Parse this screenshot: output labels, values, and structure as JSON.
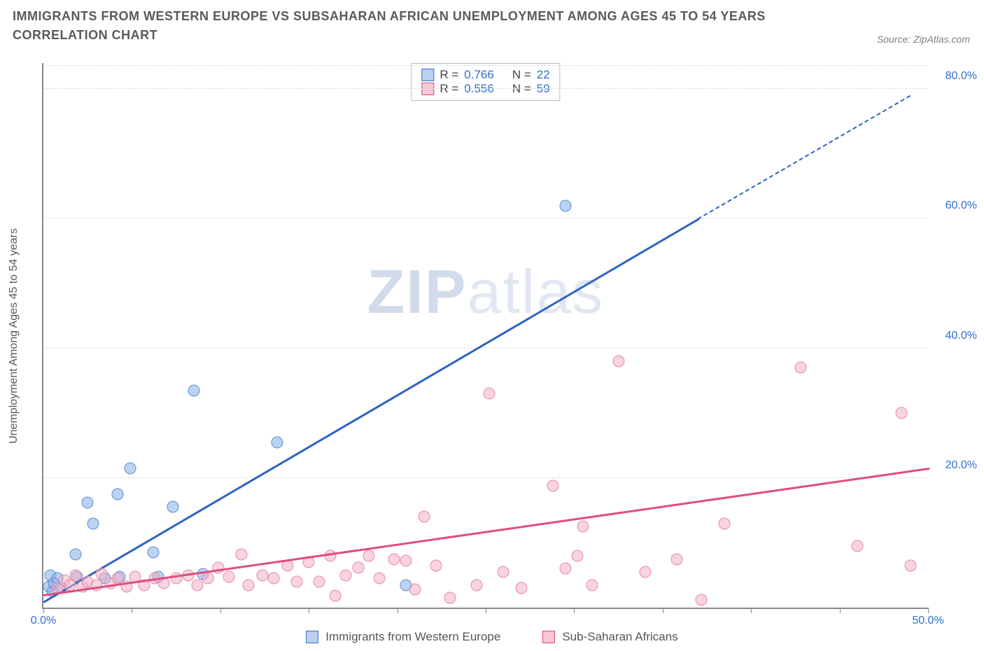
{
  "title": "IMMIGRANTS FROM WESTERN EUROPE VS SUBSAHARAN AFRICAN UNEMPLOYMENT AMONG AGES 45 TO 54 YEARS CORRELATION CHART",
  "source_label": "Source: ZipAtlas.com",
  "watermark": {
    "zip": "ZIP",
    "atlas": "atlas"
  },
  "ylabel": "Unemployment Among Ages 45 to 54 years",
  "chart": {
    "type": "scatter",
    "background_color": "#ffffff",
    "grid_color": "#dcdcdc",
    "axis_color": "#888888",
    "xlim": [
      0,
      50
    ],
    "ylim": [
      0,
      84
    ],
    "xticks": [
      0,
      5,
      10,
      15,
      20,
      25,
      30,
      35,
      40,
      45,
      50
    ],
    "xtick_labels": {
      "0": "0.0%",
      "50": "50.0%"
    },
    "yticks": [
      20,
      40,
      60,
      80
    ],
    "ytick_labels": {
      "20": "20.0%",
      "40": "40.0%",
      "60": "60.0%",
      "80": "80.0%"
    },
    "label_color": "#2f6fd0",
    "label_fontsize": 16
  },
  "stats": {
    "rows": [
      {
        "r_label": "R =",
        "r": "0.766",
        "n_label": "N =",
        "n": "22",
        "swatch_fill": "#b9d0f0",
        "swatch_border": "#3a6fc9"
      },
      {
        "r_label": "R =",
        "r": "0.556",
        "n_label": "N =",
        "n": "59",
        "swatch_fill": "#f7c7d4",
        "swatch_border": "#d94c78"
      }
    ]
  },
  "legend": {
    "items": [
      {
        "label": "Immigrants from Western Europe",
        "fill": "#b9d0f0",
        "border": "#3a6fc9"
      },
      {
        "label": "Sub-Saharan Africans",
        "fill": "#f7c7d4",
        "border": "#d94c78"
      }
    ]
  },
  "series": [
    {
      "name": "Immigrants from Western Europe",
      "color_fill": "rgba(133,173,231,0.55)",
      "color_border": "#5a8fd6",
      "marker_radius": 8.5,
      "trend": {
        "x1": 0,
        "y1": 1,
        "x2": 37,
        "y2": 60,
        "x3": 49,
        "y3": 79,
        "color": "#2e63c2",
        "width": 2.5
      },
      "points": [
        [
          0.3,
          3.2
        ],
        [
          0.4,
          5.0
        ],
        [
          0.5,
          2.5
        ],
        [
          0.6,
          3.8
        ],
        [
          0.8,
          4.5
        ],
        [
          1.0,
          3.0
        ],
        [
          1.8,
          8.2
        ],
        [
          1.9,
          4.8
        ],
        [
          2.5,
          16.2
        ],
        [
          2.8,
          13.0
        ],
        [
          3.5,
          4.5
        ],
        [
          4.2,
          17.5
        ],
        [
          4.3,
          4.8
        ],
        [
          4.9,
          21.5
        ],
        [
          6.2,
          8.5
        ],
        [
          6.5,
          4.8
        ],
        [
          7.3,
          15.5
        ],
        [
          8.5,
          33.5
        ],
        [
          9.0,
          5.2
        ],
        [
          13.2,
          25.5
        ],
        [
          20.5,
          3.5
        ],
        [
          29.5,
          62.0
        ]
      ]
    },
    {
      "name": "Sub-Saharan Africans",
      "color_fill": "rgba(244,175,196,0.55)",
      "color_border": "#e38aa8",
      "marker_radius": 8.5,
      "trend": {
        "x1": 0,
        "y1": 2,
        "x2": 50,
        "y2": 21.5,
        "color": "#e04c80",
        "width": 2.5
      },
      "points": [
        [
          0.8,
          3.0
        ],
        [
          1.2,
          4.2
        ],
        [
          1.5,
          3.5
        ],
        [
          1.8,
          5.0
        ],
        [
          2.2,
          3.2
        ],
        [
          2.5,
          4.0
        ],
        [
          3.0,
          3.5
        ],
        [
          3.3,
          5.2
        ],
        [
          3.8,
          3.8
        ],
        [
          4.2,
          4.5
        ],
        [
          4.7,
          3.2
        ],
        [
          5.2,
          4.8
        ],
        [
          5.7,
          3.5
        ],
        [
          6.3,
          4.5
        ],
        [
          6.8,
          3.8
        ],
        [
          7.5,
          4.5
        ],
        [
          8.2,
          5.0
        ],
        [
          8.7,
          3.5
        ],
        [
          9.3,
          4.5
        ],
        [
          9.9,
          6.2
        ],
        [
          10.5,
          4.8
        ],
        [
          11.2,
          8.2
        ],
        [
          11.6,
          3.5
        ],
        [
          12.4,
          5.0
        ],
        [
          13.0,
          4.5
        ],
        [
          13.8,
          6.5
        ],
        [
          14.3,
          4.0
        ],
        [
          15.0,
          7.0
        ],
        [
          15.6,
          4.0
        ],
        [
          16.2,
          8.0
        ],
        [
          16.5,
          1.8
        ],
        [
          17.1,
          5.0
        ],
        [
          17.8,
          6.2
        ],
        [
          18.4,
          8.0
        ],
        [
          19.0,
          4.5
        ],
        [
          19.8,
          7.5
        ],
        [
          20.5,
          7.2
        ],
        [
          21.0,
          2.8
        ],
        [
          21.5,
          14.0
        ],
        [
          22.2,
          6.5
        ],
        [
          23.0,
          1.5
        ],
        [
          24.5,
          3.5
        ],
        [
          25.2,
          33.0
        ],
        [
          26.0,
          5.5
        ],
        [
          27.0,
          3.0
        ],
        [
          28.8,
          18.8
        ],
        [
          29.5,
          6.0
        ],
        [
          30.2,
          8.0
        ],
        [
          30.5,
          12.5
        ],
        [
          31.0,
          3.5
        ],
        [
          32.5,
          38.0
        ],
        [
          34.0,
          5.5
        ],
        [
          35.8,
          7.5
        ],
        [
          37.2,
          1.2
        ],
        [
          38.5,
          13.0
        ],
        [
          42.8,
          37.0
        ],
        [
          46.0,
          9.5
        ],
        [
          48.5,
          30.0
        ],
        [
          49.0,
          6.5
        ]
      ]
    }
  ]
}
